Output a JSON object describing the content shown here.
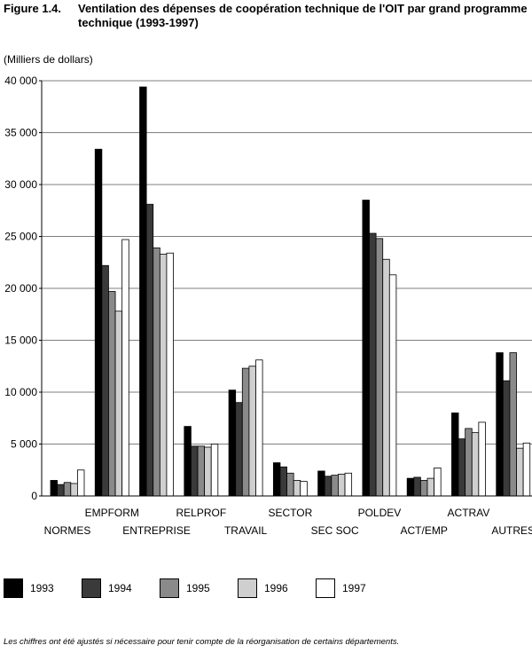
{
  "figure": {
    "number": "Figure 1.4.",
    "title": "Ventilation des dépenses de coopération technique de l'OIT par grand programme technique (1993-1997)",
    "units": "(Milliers de dollars)",
    "footnote": "Les chiffres ont été ajustés si nécessaire pour tenir compte de la réorganisation de certains départements."
  },
  "chart_data": {
    "type": "bar",
    "ylim": [
      0,
      40000
    ],
    "yticks": [
      0,
      5000,
      10000,
      15000,
      20000,
      25000,
      30000,
      35000,
      40000
    ],
    "ytick_labels": [
      "0",
      "5 000",
      "10 000",
      "15 000",
      "20 000",
      "25 000",
      "30 000",
      "35 000",
      "40 000"
    ],
    "grid": "horizontal",
    "legend_position": "bottom",
    "categories": [
      "NORMES",
      "EMPFORM",
      "ENTREPRISE",
      "RELPROF",
      "TRAVAIL",
      "SECTOR",
      "SEC SOC",
      "POLDEV",
      "ACT/EMP",
      "ACTRAV",
      "AUTRES"
    ],
    "series": [
      {
        "name": "1993",
        "color": "#000000",
        "values": [
          1500,
          33400,
          39400,
          6700,
          10200,
          3200,
          2400,
          28500,
          1700,
          8000,
          13800
        ]
      },
      {
        "name": "1994",
        "color": "#3a3a3a",
        "values": [
          1100,
          22200,
          28100,
          4800,
          9000,
          2800,
          1900,
          25300,
          1800,
          5500,
          11100
        ]
      },
      {
        "name": "1995",
        "color": "#8a8a8a",
        "values": [
          1300,
          19700,
          23900,
          4800,
          12300,
          2200,
          2000,
          24800,
          1500,
          6500,
          13800
        ]
      },
      {
        "name": "1996",
        "color": "#cfcfcf",
        "values": [
          1200,
          17800,
          23300,
          4700,
          12500,
          1500,
          2100,
          22800,
          1700,
          6100,
          4600
        ]
      },
      {
        "name": "1997",
        "color": "#ffffff",
        "values": [
          2500,
          24700,
          23400,
          5000,
          13100,
          1400,
          2200,
          21300,
          2700,
          7100,
          5100
        ]
      }
    ]
  }
}
